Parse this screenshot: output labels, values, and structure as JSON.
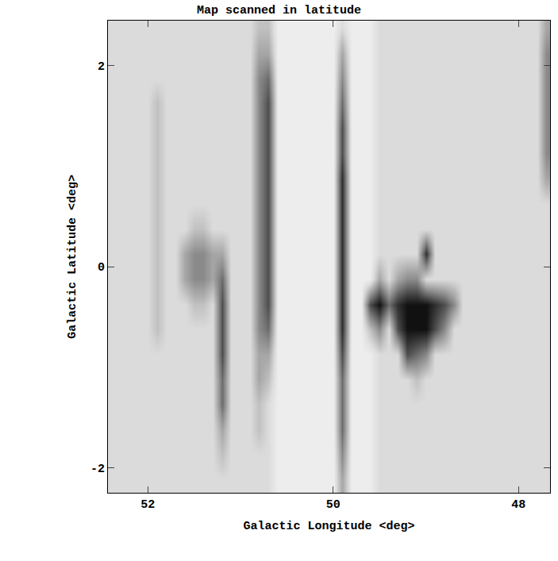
{
  "chart_data": {
    "type": "heatmap",
    "title": "Map scanned in latitude",
    "x_label": "Galactic Longitude <deg>",
    "y_label": "Galactic Latitude <deg>",
    "xlim": [
      52.43,
      47.66
    ],
    "ylim": [
      -2.25,
      2.45
    ],
    "xticks": [
      52,
      50,
      48
    ],
    "yticks": [
      2,
      0,
      -2
    ],
    "zlim": [
      0,
      9
    ],
    "x": [
      52.4,
      52.3,
      52.2,
      52.1,
      52.0,
      51.9,
      51.8,
      51.7,
      51.6,
      51.5,
      51.4,
      51.3,
      51.2,
      51.1,
      51.0,
      50.9,
      50.8,
      50.7,
      50.6,
      50.5,
      50.4,
      50.3,
      50.2,
      50.1,
      50.0,
      49.9,
      49.8,
      49.7,
      49.6,
      49.5,
      49.4,
      49.3,
      49.2,
      49.1,
      49.0,
      48.9,
      48.8,
      48.7,
      48.6,
      48.5,
      48.4,
      48.3,
      48.2,
      48.1,
      48.0,
      47.9,
      47.8,
      47.7
    ],
    "y": [
      -2.125,
      -1.875,
      -1.625,
      -1.375,
      -1.125,
      -0.875,
      -0.625,
      -0.375,
      -0.125,
      0.125,
      0.375,
      0.625,
      0.875,
      1.125,
      1.375,
      1.625,
      1.875,
      2.125,
      2.375
    ],
    "cells": [
      [
        2,
        2,
        2,
        2,
        2,
        2,
        2,
        2,
        2,
        2,
        2,
        2,
        2,
        2,
        2,
        2,
        2,
        2,
        1,
        1,
        1,
        1,
        1,
        1,
        1,
        4,
        1,
        1,
        1,
        2,
        2,
        2,
        2,
        2,
        2,
        2,
        2,
        2,
        2,
        2,
        2,
        2,
        2,
        2,
        2,
        2,
        2,
        2
      ],
      [
        2,
        2,
        2,
        2,
        2,
        2,
        2,
        2,
        2,
        2,
        2,
        2,
        3,
        2,
        2,
        2,
        2,
        2,
        1,
        1,
        1,
        1,
        1,
        1,
        1,
        5,
        1,
        1,
        1,
        2,
        2,
        2,
        2,
        2,
        2,
        2,
        2,
        2,
        2,
        2,
        2,
        2,
        2,
        2,
        2,
        2,
        2,
        2
      ],
      [
        2,
        2,
        2,
        2,
        2,
        2,
        2,
        2,
        2,
        2,
        2,
        2,
        4,
        2,
        2,
        2,
        3,
        2,
        1,
        1,
        1,
        1,
        1,
        1,
        1,
        6,
        1,
        1,
        1,
        2,
        2,
        2,
        2,
        2,
        2,
        2,
        2,
        2,
        2,
        2,
        2,
        2,
        2,
        2,
        2,
        2,
        2,
        2
      ],
      [
        2,
        2,
        2,
        2,
        2,
        2,
        2,
        2,
        2,
        2,
        2,
        2,
        6,
        2,
        2,
        2,
        3,
        2,
        1,
        1,
        1,
        1,
        1,
        1,
        1,
        6,
        1,
        1,
        1,
        2,
        2,
        2,
        2,
        2,
        2,
        2,
        2,
        2,
        2,
        2,
        2,
        2,
        2,
        2,
        2,
        2,
        2,
        2
      ],
      [
        2,
        2,
        2,
        2,
        2,
        2,
        2,
        2,
        2,
        2,
        2,
        2,
        6,
        2,
        2,
        2,
        4,
        3,
        1,
        1,
        1,
        1,
        1,
        1,
        1,
        6,
        1,
        1,
        1,
        2,
        2,
        2,
        2,
        3,
        2,
        2,
        2,
        2,
        2,
        2,
        2,
        2,
        2,
        2,
        2,
        2,
        2,
        2
      ],
      [
        2,
        2,
        2,
        2,
        2,
        2,
        2,
        2,
        2,
        2,
        2,
        2,
        7,
        2,
        2,
        2,
        4,
        4,
        1,
        1,
        1,
        1,
        1,
        1,
        1,
        7,
        1,
        1,
        1,
        2,
        2,
        2,
        7,
        6,
        5,
        2,
        2,
        2,
        2,
        2,
        2,
        2,
        2,
        2,
        2,
        2,
        2,
        2
      ],
      [
        2,
        2,
        2,
        2,
        2,
        3,
        2,
        2,
        2,
        2,
        2,
        2,
        7,
        2,
        2,
        2,
        5,
        6,
        1,
        1,
        1,
        1,
        1,
        1,
        1,
        8,
        1,
        1,
        3,
        5,
        2,
        7,
        9,
        9,
        9,
        7,
        5,
        2,
        2,
        2,
        2,
        2,
        2,
        2,
        2,
        2,
        2,
        2
      ],
      [
        2,
        2,
        2,
        2,
        2,
        3,
        2,
        2,
        2,
        3,
        3,
        2,
        7,
        2,
        2,
        2,
        5,
        7,
        1,
        1,
        1,
        1,
        1,
        1,
        1,
        8,
        1,
        1,
        7,
        9,
        6,
        8,
        9,
        9,
        9,
        8,
        7,
        5,
        2,
        2,
        2,
        2,
        2,
        2,
        2,
        2,
        2,
        2
      ],
      [
        2,
        2,
        2,
        2,
        2,
        3,
        2,
        2,
        4,
        5,
        5,
        4,
        6,
        2,
        2,
        2,
        5,
        7,
        1,
        1,
        1,
        1,
        1,
        1,
        1,
        8,
        1,
        1,
        1,
        4,
        2,
        4,
        5,
        5,
        2,
        2,
        2,
        2,
        2,
        2,
        2,
        2,
        2,
        2,
        2,
        2,
        2,
        2
      ],
      [
        2,
        2,
        2,
        2,
        2,
        3,
        2,
        2,
        4,
        5,
        5,
        4,
        4,
        2,
        2,
        2,
        5,
        7,
        1,
        1,
        1,
        1,
        1,
        1,
        1,
        8,
        1,
        1,
        1,
        2,
        2,
        2,
        2,
        2,
        8,
        2,
        2,
        2,
        2,
        2,
        2,
        2,
        2,
        2,
        2,
        2,
        2,
        2
      ],
      [
        2,
        2,
        2,
        2,
        2,
        3,
        2,
        2,
        2,
        3,
        3,
        2,
        2,
        2,
        2,
        2,
        5,
        7,
        1,
        1,
        1,
        1,
        1,
        1,
        1,
        8,
        1,
        1,
        1,
        2,
        2,
        2,
        2,
        2,
        2,
        2,
        2,
        2,
        2,
        2,
        2,
        2,
        2,
        2,
        2,
        2,
        2,
        2
      ],
      [
        2,
        2,
        2,
        2,
        2,
        3,
        2,
        2,
        2,
        2,
        2,
        2,
        2,
        2,
        2,
        2,
        5,
        7,
        1,
        1,
        1,
        1,
        1,
        1,
        1,
        8,
        1,
        1,
        1,
        2,
        2,
        2,
        2,
        2,
        2,
        2,
        2,
        2,
        2,
        2,
        2,
        2,
        2,
        2,
        2,
        2,
        2,
        2
      ],
      [
        2,
        2,
        2,
        2,
        2,
        3,
        2,
        2,
        2,
        2,
        2,
        2,
        2,
        2,
        2,
        2,
        5,
        7,
        1,
        1,
        1,
        1,
        1,
        1,
        1,
        8,
        1,
        1,
        1,
        2,
        2,
        2,
        2,
        2,
        2,
        2,
        2,
        2,
        2,
        2,
        2,
        2,
        2,
        2,
        2,
        2,
        2,
        4
      ],
      [
        2,
        2,
        2,
        2,
        2,
        3,
        2,
        2,
        2,
        2,
        2,
        2,
        2,
        2,
        2,
        2,
        5,
        7,
        1,
        1,
        1,
        1,
        1,
        1,
        1,
        7,
        1,
        1,
        1,
        2,
        2,
        2,
        2,
        2,
        2,
        2,
        2,
        2,
        2,
        2,
        2,
        2,
        2,
        2,
        2,
        2,
        2,
        5
      ],
      [
        2,
        2,
        2,
        2,
        2,
        3,
        2,
        2,
        2,
        2,
        2,
        2,
        2,
        2,
        2,
        2,
        5,
        7,
        1,
        1,
        1,
        1,
        1,
        1,
        1,
        7,
        1,
        1,
        1,
        2,
        2,
        2,
        2,
        2,
        2,
        2,
        2,
        2,
        2,
        2,
        2,
        2,
        2,
        2,
        2,
        2,
        2,
        5
      ],
      [
        2,
        2,
        2,
        2,
        2,
        3,
        2,
        2,
        2,
        2,
        2,
        2,
        2,
        2,
        2,
        2,
        5,
        7,
        1,
        1,
        1,
        1,
        1,
        1,
        1,
        6,
        1,
        1,
        1,
        2,
        2,
        2,
        2,
        2,
        2,
        2,
        2,
        2,
        2,
        2,
        2,
        2,
        2,
        2,
        2,
        2,
        2,
        5
      ],
      [
        2,
        2,
        2,
        2,
        2,
        2,
        2,
        2,
        2,
        2,
        2,
        2,
        2,
        2,
        2,
        2,
        5,
        6,
        1,
        1,
        1,
        1,
        1,
        1,
        1,
        5,
        1,
        1,
        1,
        2,
        2,
        2,
        2,
        2,
        2,
        2,
        2,
        2,
        2,
        2,
        2,
        2,
        2,
        2,
        2,
        2,
        2,
        5
      ],
      [
        2,
        2,
        2,
        2,
        2,
        2,
        2,
        2,
        2,
        2,
        2,
        2,
        2,
        2,
        2,
        2,
        4,
        4,
        1,
        1,
        1,
        1,
        1,
        1,
        1,
        4,
        1,
        1,
        1,
        2,
        2,
        2,
        2,
        2,
        2,
        2,
        2,
        2,
        2,
        2,
        2,
        2,
        2,
        2,
        2,
        2,
        2,
        5
      ],
      [
        2,
        2,
        2,
        2,
        2,
        2,
        2,
        2,
        2,
        2,
        2,
        2,
        2,
        2,
        2,
        2,
        3,
        3,
        1,
        1,
        1,
        1,
        1,
        1,
        1,
        2,
        1,
        1,
        1,
        2,
        2,
        2,
        2,
        2,
        2,
        2,
        2,
        2,
        2,
        2,
        2,
        2,
        2,
        2,
        2,
        2,
        2,
        4
      ]
    ],
    "color": "gray",
    "grid": false
  }
}
